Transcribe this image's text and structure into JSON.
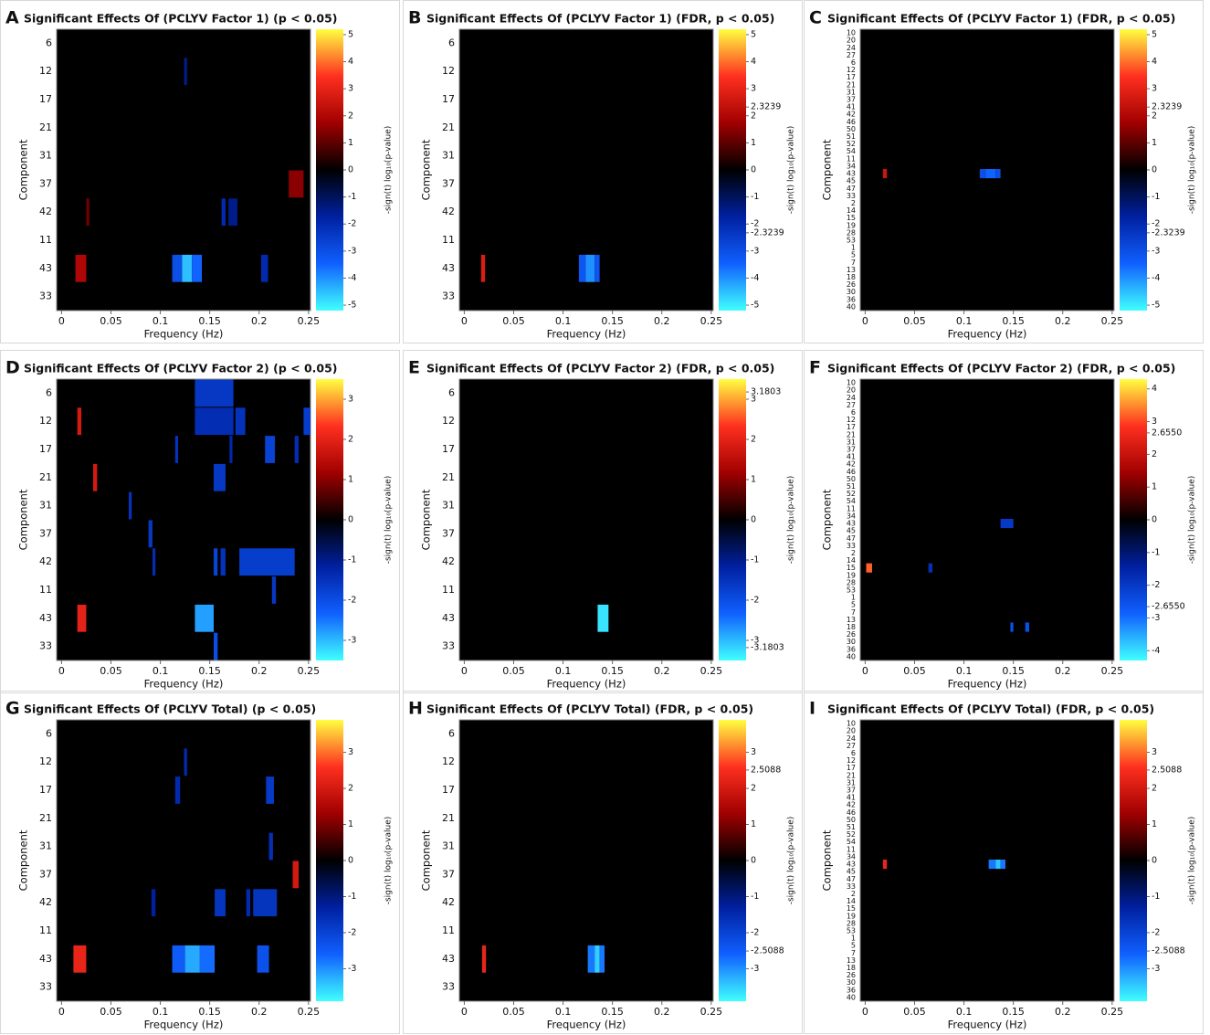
{
  "chart_data": [
    {
      "type": "heatmap",
      "panel": "A",
      "title": "Significant Effects Of (PCLYV Factor 1) (p < 0.05)",
      "xlabel": "Frequency (Hz)",
      "ylabel": "Component",
      "colorbar_label": "-sign(t) log₁₀(p-value)",
      "categories": [
        "6",
        "12",
        "17",
        "21",
        "31",
        "37",
        "42",
        "11",
        "43",
        "33"
      ],
      "xlim": [
        -0.005,
        0.252
      ],
      "xticks": [
        0,
        0.05,
        0.1,
        0.15,
        0.2,
        0.25
      ],
      "clim": [
        -5.2,
        5.2
      ],
      "cticks": [
        5,
        4,
        3,
        2,
        1,
        0,
        -1,
        -2,
        -3,
        -4,
        -5
      ],
      "colormap": [
        "#40ffff",
        "#1060ff",
        "#0020a0",
        "#000000",
        "#a00000",
        "#ff3020",
        "#ffff40"
      ],
      "cells": [
        {
          "row": "12",
          "x": [
            0.124,
            0.127
          ],
          "value": -1.5
        },
        {
          "row": "37",
          "x": [
            0.23,
            0.245
          ],
          "value": 1.5
        },
        {
          "row": "42",
          "x": [
            0.025,
            0.028
          ],
          "value": 1.2
        },
        {
          "row": "42",
          "x": [
            0.162,
            0.166
          ],
          "value": -2
        },
        {
          "row": "42",
          "x": [
            0.169,
            0.178
          ],
          "value": -1.5
        },
        {
          "row": "43",
          "x": [
            0.014,
            0.025
          ],
          "value": 2
        },
        {
          "row": "43",
          "x": [
            0.112,
            0.122
          ],
          "value": -3
        },
        {
          "row": "43",
          "x": [
            0.122,
            0.132
          ],
          "value": -4.5
        },
        {
          "row": "43",
          "x": [
            0.132,
            0.142
          ],
          "value": -3.5
        },
        {
          "row": "43",
          "x": [
            0.202,
            0.209
          ],
          "value": -2
        }
      ]
    },
    {
      "type": "heatmap",
      "panel": "B",
      "title": "Significant Effects Of (PCLYV Factor 1) (FDR, p < 0.05)",
      "xlabel": "Frequency (Hz)",
      "ylabel": "Component",
      "colorbar_label": "-sign(t) log₁₀(p-value)",
      "categories": [
        "6",
        "12",
        "17",
        "21",
        "31",
        "37",
        "42",
        "11",
        "43",
        "33"
      ],
      "xlim": [
        -0.005,
        0.252
      ],
      "xticks": [
        0,
        0.05,
        0.1,
        0.15,
        0.2,
        0.25
      ],
      "clim": [
        -5.2,
        5.2
      ],
      "cticks": [
        5,
        4,
        3,
        2.3239,
        2,
        1,
        0,
        -1,
        -2,
        -2.3239,
        -3,
        -4,
        -5
      ],
      "colormap": [
        "#40ffff",
        "#1060ff",
        "#0020a0",
        "#000000",
        "#a00000",
        "#ff3020",
        "#ffff40"
      ],
      "cells": [
        {
          "row": "43",
          "x": [
            0.017,
            0.021
          ],
          "value": 2.8
        },
        {
          "row": "43",
          "x": [
            0.116,
            0.123
          ],
          "value": -3.2
        },
        {
          "row": "43",
          "x": [
            0.123,
            0.132
          ],
          "value": -4
        },
        {
          "row": "43",
          "x": [
            0.132,
            0.137
          ],
          "value": -3.2
        }
      ]
    },
    {
      "type": "heatmap",
      "panel": "C",
      "title": "Significant Effects Of (PCLYV Factor 1) (FDR, p < 0.05)",
      "xlabel": "Frequency (Hz)",
      "ylabel": "Component",
      "colorbar_label": "-sign(t) log₁₀(p-value)",
      "categories": [
        "10",
        "20",
        "24",
        "27",
        "6",
        "12",
        "17",
        "21",
        "31",
        "37",
        "41",
        "42",
        "46",
        "50",
        "51",
        "52",
        "54",
        "11",
        "34",
        "43",
        "45",
        "47",
        "33",
        "2",
        "14",
        "15",
        "19",
        "28",
        "53",
        "1",
        "5",
        "7",
        "13",
        "18",
        "26",
        "30",
        "36",
        "40"
      ],
      "xlim": [
        -0.005,
        0.252
      ],
      "xticks": [
        0,
        0.05,
        0.1,
        0.15,
        0.2,
        0.25
      ],
      "clim": [
        -5.2,
        5.2
      ],
      "cticks": [
        5,
        4,
        3,
        2.3239,
        2,
        1,
        0,
        -1,
        -2,
        -2.3239,
        -3,
        -4,
        -5
      ],
      "colormap": [
        "#40ffff",
        "#1060ff",
        "#0020a0",
        "#000000",
        "#a00000",
        "#ff3020",
        "#ffff40"
      ],
      "cells": [
        {
          "row": "43",
          "x": [
            0.018,
            0.022
          ],
          "value": 2.5
        },
        {
          "row": "43",
          "x": [
            0.116,
            0.122
          ],
          "value": -3
        },
        {
          "row": "43",
          "x": [
            0.122,
            0.132
          ],
          "value": -3.5
        },
        {
          "row": "43",
          "x": [
            0.132,
            0.137
          ],
          "value": -3
        }
      ]
    },
    {
      "type": "heatmap",
      "panel": "D",
      "title": "Significant Effects Of (PCLYV Factor 2) (p < 0.05)",
      "xlabel": "Frequency (Hz)",
      "ylabel": "Component",
      "colorbar_label": "-sign(t) log₁₀(p-value)",
      "categories": [
        "6",
        "12",
        "17",
        "21",
        "31",
        "37",
        "42",
        "11",
        "43",
        "33"
      ],
      "xlim": [
        -0.005,
        0.252
      ],
      "xticks": [
        0,
        0.05,
        0.1,
        0.15,
        0.2,
        0.25
      ],
      "clim": [
        -3.5,
        3.5
      ],
      "cticks": [
        3,
        2,
        1,
        0,
        -1,
        -2,
        -3
      ],
      "colormap": [
        "#40ffff",
        "#1060ff",
        "#0020a0",
        "#000000",
        "#a00000",
        "#ff3020",
        "#ffff40"
      ],
      "cells": [
        {
          "row": "6",
          "x": [
            0.135,
            0.174
          ],
          "value": -1.6
        },
        {
          "row": "12",
          "x": [
            0.135,
            0.174
          ],
          "value": -1.4
        },
        {
          "row": "12",
          "x": [
            0.176,
            0.186
          ],
          "value": -1.5
        },
        {
          "row": "12",
          "x": [
            0.245,
            0.252
          ],
          "value": -1.7
        },
        {
          "row": "12",
          "x": [
            0.016,
            0.02
          ],
          "value": 1.8
        },
        {
          "row": "17",
          "x": [
            0.115,
            0.118
          ],
          "value": -1.5
        },
        {
          "row": "17",
          "x": [
            0.17,
            0.173
          ],
          "value": -1.3
        },
        {
          "row": "17",
          "x": [
            0.206,
            0.216
          ],
          "value": -1.8
        },
        {
          "row": "17",
          "x": [
            0.236,
            0.24
          ],
          "value": -1.4
        },
        {
          "row": "21",
          "x": [
            0.032,
            0.036
          ],
          "value": 1.8
        },
        {
          "row": "21",
          "x": [
            0.154,
            0.166
          ],
          "value": -1.6
        },
        {
          "row": "31",
          "x": [
            0.068,
            0.071
          ],
          "value": -1.5
        },
        {
          "row": "37",
          "x": [
            0.088,
            0.092
          ],
          "value": -1.6
        },
        {
          "row": "42",
          "x": [
            0.092,
            0.095
          ],
          "value": -1.4
        },
        {
          "row": "42",
          "x": [
            0.154,
            0.158
          ],
          "value": -1.8
        },
        {
          "row": "42",
          "x": [
            0.161,
            0.166
          ],
          "value": -1.5
        },
        {
          "row": "42",
          "x": [
            0.18,
            0.236
          ],
          "value": -1.7
        },
        {
          "row": "11",
          "x": [
            0.213,
            0.217
          ],
          "value": -1.6
        },
        {
          "row": "43",
          "x": [
            0.016,
            0.025
          ],
          "value": 2
        },
        {
          "row": "43",
          "x": [
            0.135,
            0.154
          ],
          "value": -2.8
        },
        {
          "row": "33",
          "x": [
            0.154,
            0.158
          ],
          "value": -2
        }
      ]
    },
    {
      "type": "heatmap",
      "panel": "E",
      "title": "Significant Effects Of (PCLYV Factor 2) (FDR, p < 0.05)",
      "xlabel": "Frequency (Hz)",
      "ylabel": "Component",
      "colorbar_label": "-sign(t) log₁₀(p-value)",
      "categories": [
        "6",
        "12",
        "17",
        "21",
        "31",
        "37",
        "42",
        "11",
        "43",
        "33"
      ],
      "xlim": [
        -0.005,
        0.252
      ],
      "xticks": [
        0,
        0.05,
        0.1,
        0.15,
        0.2,
        0.25
      ],
      "clim": [
        -3.5,
        3.5
      ],
      "cticks": [
        3.1803,
        3,
        2,
        1,
        0,
        -1,
        -2,
        -3,
        -3.1803
      ],
      "colormap": [
        "#40ffff",
        "#1060ff",
        "#0020a0",
        "#000000",
        "#a00000",
        "#ff3020",
        "#ffff40"
      ],
      "cells": [
        {
          "row": "43",
          "x": [
            0.135,
            0.146
          ],
          "value": -3.3
        }
      ]
    },
    {
      "type": "heatmap",
      "panel": "F",
      "title": "Significant Effects Of (PCLYV Factor 2) (FDR, p < 0.05)",
      "xlabel": "Frequency (Hz)",
      "ylabel": "Component",
      "colorbar_label": "-sign(t) log₁₀(p-value)",
      "categories": [
        "10",
        "20",
        "24",
        "27",
        "6",
        "12",
        "17",
        "21",
        "31",
        "37",
        "41",
        "42",
        "46",
        "50",
        "51",
        "52",
        "54",
        "11",
        "34",
        "43",
        "45",
        "47",
        "33",
        "2",
        "14",
        "15",
        "19",
        "28",
        "53",
        "1",
        "5",
        "7",
        "13",
        "18",
        "26",
        "30",
        "36",
        "40"
      ],
      "xlim": [
        -0.005,
        0.252
      ],
      "xticks": [
        0,
        0.05,
        0.1,
        0.15,
        0.2,
        0.25
      ],
      "clim": [
        -4.3,
        4.3
      ],
      "cticks": [
        4,
        3,
        {
          "value": 2.655,
          "label": "2.6550"
        },
        2,
        1,
        0,
        -1,
        -2,
        {
          "value": -2.655,
          "label": "-2.6550"
        },
        -3,
        -4
      ],
      "colormap": [
        "#40ffff",
        "#1060ff",
        "#0020a0",
        "#000000",
        "#a00000",
        "#ff3020",
        "#ffff40"
      ],
      "cells": [
        {
          "row": "43",
          "x": [
            0.137,
            0.15
          ],
          "value": -2
        },
        {
          "row": "15",
          "x": [
            0.001,
            0.007
          ],
          "value": 3.2
        },
        {
          "row": "15",
          "x": [
            0.064,
            0.068
          ],
          "value": -1.8
        },
        {
          "row": "18",
          "x": [
            0.147,
            0.15
          ],
          "value": -2.5
        },
        {
          "row": "18",
          "x": [
            0.162,
            0.166
          ],
          "value": -2.5
        }
      ]
    },
    {
      "type": "heatmap",
      "panel": "G",
      "title": "Significant Effects Of (PCLYV Total) (p < 0.05)",
      "xlabel": "Frequency (Hz)",
      "ylabel": "Component",
      "colorbar_label": "-sign(t) log₁₀(p-value)",
      "categories": [
        "6",
        "12",
        "17",
        "21",
        "31",
        "37",
        "42",
        "11",
        "43",
        "33"
      ],
      "xlim": [
        -0.005,
        0.252
      ],
      "xticks": [
        0,
        0.05,
        0.1,
        0.15,
        0.2,
        0.25
      ],
      "clim": [
        -3.9,
        3.9
      ],
      "cticks": [
        3,
        2,
        1,
        0,
        -1,
        -2,
        -3
      ],
      "colormap": [
        "#40ffff",
        "#1060ff",
        "#0020a0",
        "#000000",
        "#a00000",
        "#ff3020",
        "#ffff40"
      ],
      "cells": [
        {
          "row": "12",
          "x": [
            0.124,
            0.127
          ],
          "value": -1.5
        },
        {
          "row": "17",
          "x": [
            0.115,
            0.12
          ],
          "value": -1.5
        },
        {
          "row": "17",
          "x": [
            0.207,
            0.215
          ],
          "value": -1.8
        },
        {
          "row": "31",
          "x": [
            0.21,
            0.214
          ],
          "value": -1.6
        },
        {
          "row": "37",
          "x": [
            0.234,
            0.24
          ],
          "value": 2
        },
        {
          "row": "42",
          "x": [
            0.091,
            0.095
          ],
          "value": -1.3
        },
        {
          "row": "42",
          "x": [
            0.155,
            0.166
          ],
          "value": -1.7
        },
        {
          "row": "42",
          "x": [
            0.187,
            0.191
          ],
          "value": -1.5
        },
        {
          "row": "42",
          "x": [
            0.194,
            0.218
          ],
          "value": -1.7
        },
        {
          "row": "43",
          "x": [
            0.012,
            0.025
          ],
          "value": 2.3
        },
        {
          "row": "43",
          "x": [
            0.112,
            0.125
          ],
          "value": -2.5
        },
        {
          "row": "43",
          "x": [
            0.125,
            0.14
          ],
          "value": -3.2
        },
        {
          "row": "43",
          "x": [
            0.14,
            0.155
          ],
          "value": -2.7
        },
        {
          "row": "43",
          "x": [
            0.198,
            0.21
          ],
          "value": -2.3
        }
      ]
    },
    {
      "type": "heatmap",
      "panel": "H",
      "title": "Significant Effects Of (PCLYV Total) (FDR, p < 0.05)",
      "xlabel": "Frequency (Hz)",
      "ylabel": "Component",
      "colorbar_label": "-sign(t) log₁₀(p-value)",
      "categories": [
        "6",
        "12",
        "17",
        "21",
        "31",
        "37",
        "42",
        "11",
        "43",
        "33"
      ],
      "xlim": [
        -0.005,
        0.252
      ],
      "xticks": [
        0,
        0.05,
        0.1,
        0.15,
        0.2,
        0.25
      ],
      "clim": [
        -3.9,
        3.9
      ],
      "cticks": [
        3,
        2.5088,
        2,
        1,
        0,
        -1,
        -2,
        -2.5088,
        -3
      ],
      "colormap": [
        "#40ffff",
        "#1060ff",
        "#0020a0",
        "#000000",
        "#a00000",
        "#ff3020",
        "#ffff40"
      ],
      "cells": [
        {
          "row": "43",
          "x": [
            0.018,
            0.022
          ],
          "value": 2.3
        },
        {
          "row": "43",
          "x": [
            0.125,
            0.132
          ],
          "value": -2.8
        },
        {
          "row": "43",
          "x": [
            0.132,
            0.137
          ],
          "value": -3.5
        },
        {
          "row": "43",
          "x": [
            0.137,
            0.142
          ],
          "value": -2.8
        }
      ]
    },
    {
      "type": "heatmap",
      "panel": "I",
      "title": "Significant Effects Of (PCLYV Total) (FDR, p < 0.05)",
      "xlabel": "Frequency (Hz)",
      "ylabel": "Component",
      "colorbar_label": "-sign(t) log₁₀(p-value)",
      "categories": [
        "10",
        "20",
        "24",
        "27",
        "6",
        "12",
        "17",
        "21",
        "31",
        "37",
        "41",
        "42",
        "46",
        "50",
        "51",
        "52",
        "54",
        "11",
        "34",
        "43",
        "45",
        "47",
        "33",
        "2",
        "14",
        "15",
        "19",
        "28",
        "53",
        "1",
        "5",
        "7",
        "13",
        "18",
        "26",
        "30",
        "36",
        "40"
      ],
      "xlim": [
        -0.005,
        0.252
      ],
      "xticks": [
        0,
        0.05,
        0.1,
        0.15,
        0.2,
        0.25
      ],
      "clim": [
        -3.9,
        3.9
      ],
      "cticks": [
        3,
        2.5088,
        2,
        1,
        0,
        -1,
        -2,
        -2.5088,
        -3
      ],
      "colormap": [
        "#40ffff",
        "#1060ff",
        "#0020a0",
        "#000000",
        "#a00000",
        "#ff3020",
        "#ffff40"
      ],
      "cells": [
        {
          "row": "43",
          "x": [
            0.018,
            0.022
          ],
          "value": 2.3
        },
        {
          "row": "43",
          "x": [
            0.125,
            0.132
          ],
          "value": -2.8
        },
        {
          "row": "43",
          "x": [
            0.132,
            0.137
          ],
          "value": -3.4
        },
        {
          "row": "43",
          "x": [
            0.137,
            0.142
          ],
          "value": -2.8
        }
      ]
    }
  ]
}
